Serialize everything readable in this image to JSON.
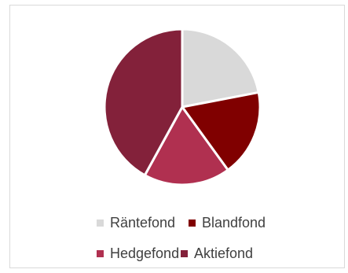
{
  "chart_data": {
    "type": "pie",
    "title": "",
    "start_angle_deg": 0,
    "direction": "clockwise",
    "legend_position": "bottom",
    "slices": [
      {
        "name": "Räntefond",
        "value": 22,
        "color": "#d9d9d9"
      },
      {
        "name": "Blandfond",
        "value": 18,
        "color": "#800000"
      },
      {
        "name": "Hedgefond",
        "value": 18,
        "color": "#b03050"
      },
      {
        "name": "Aktiefond",
        "value": 42,
        "color": "#83213a"
      }
    ]
  }
}
